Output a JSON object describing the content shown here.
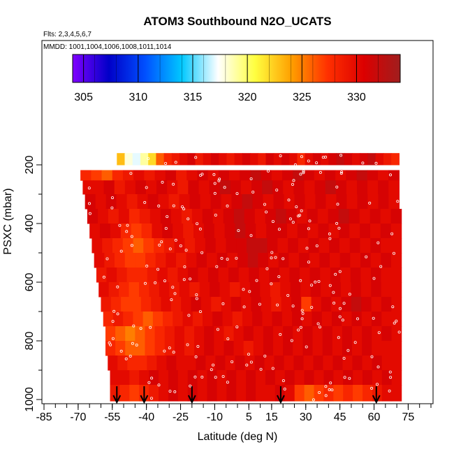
{
  "chart_data": {
    "type": "heatmap",
    "title": "ATOM3 Southbound N2O_UCATS",
    "flights_label": "Flts: 2,3,4,5,6,7",
    "dates_label": "MMDD: 1001,1004,1006,1008,1011,1014",
    "xlabel": "Latitude (deg N)",
    "ylabel": "PSXC (mbar)",
    "x_ticks": [
      "-85",
      "-70",
      "-55",
      "-40",
      "-25",
      "-10",
      "5",
      "15",
      "30",
      "45",
      "60",
      "75"
    ],
    "y_ticks": [
      "200",
      "400",
      "600",
      "800",
      "1000"
    ],
    "xlim": [
      -85,
      85
    ],
    "ylim": [
      1000,
      200
    ],
    "colorbar": {
      "range": [
        304,
        334
      ],
      "ticks": [
        "305",
        "310",
        "315",
        "320",
        "325",
        "330"
      ],
      "colors": [
        "#8000ff",
        "#0000c8",
        "#0050ff",
        "#00c8ff",
        "#ffffff",
        "#ffff40",
        "#ffa000",
        "#ff3000",
        "#dc0000",
        "#a01e1e"
      ]
    },
    "arrow_latitudes": [
      -53,
      -41,
      -20,
      19,
      61
    ],
    "layers": [
      {
        "p_top": 160,
        "p_bot": 200,
        "lat_min": -53,
        "lat_max": 71,
        "values": [
          323,
          318,
          317,
          319,
          322,
          326,
          328,
          329,
          330,
          331,
          329,
          330,
          331,
          330,
          329,
          330,
          331,
          330,
          329,
          331,
          330,
          331,
          330,
          328,
          330,
          331,
          330,
          331,
          332,
          331,
          330,
          331,
          332,
          330,
          329,
          328
        ]
      },
      {
        "p_top": 218,
        "p_bot": 253,
        "lat_min": -69,
        "lat_max": 71,
        "values": [
          328,
          327,
          326,
          328,
          329,
          330,
          329,
          330,
          331,
          329,
          330,
          331,
          330,
          331,
          330,
          331,
          332,
          331,
          330,
          331,
          332,
          331,
          330,
          331,
          330,
          331,
          332,
          331,
          330,
          331
        ]
      },
      {
        "p_top": 253,
        "p_bot": 300,
        "lat_min": -68,
        "lat_max": 71,
        "values": [
          330,
          330,
          331,
          329,
          330,
          331,
          330,
          331,
          330,
          329,
          331,
          330,
          331,
          332,
          331,
          330,
          331,
          332,
          331,
          330,
          331,
          330,
          331,
          332,
          331,
          330,
          331,
          330,
          331,
          330
        ]
      },
      {
        "p_top": 300,
        "p_bot": 350,
        "lat_min": -67,
        "lat_max": 71,
        "values": [
          331,
          330,
          331,
          330,
          329,
          330,
          331,
          330,
          329,
          330,
          331,
          330,
          331,
          330,
          331,
          332,
          331,
          330,
          331,
          330,
          331,
          330,
          331,
          330,
          331,
          330,
          331,
          330,
          331,
          330
        ]
      },
      {
        "p_top": 350,
        "p_bot": 400,
        "lat_min": -66,
        "lat_max": 72,
        "values": [
          331,
          330,
          329,
          330,
          328,
          329,
          330,
          331,
          330,
          329,
          330,
          331,
          330,
          331,
          332,
          331,
          330,
          331,
          332,
          331,
          330,
          331,
          330,
          331,
          332,
          331,
          330,
          331,
          330,
          331
        ]
      },
      {
        "p_top": 400,
        "p_bot": 450,
        "lat_min": -65,
        "lat_max": 72,
        "values": [
          330,
          331,
          330,
          328,
          327,
          328,
          330,
          331,
          330,
          329,
          330,
          331,
          330,
          331,
          332,
          331,
          330,
          331,
          331,
          330,
          331,
          330,
          331,
          330,
          331,
          330,
          331,
          330,
          331,
          330
        ]
      },
      {
        "p_top": 450,
        "p_bot": 500,
        "lat_min": -64,
        "lat_max": 72,
        "values": [
          330,
          329,
          328,
          327,
          326,
          327,
          328,
          329,
          330,
          329,
          330,
          331,
          330,
          331,
          331,
          332,
          332,
          331,
          330,
          331,
          330,
          331,
          330,
          331,
          330,
          331,
          330,
          331,
          330,
          330
        ]
      },
      {
        "p_top": 500,
        "p_bot": 550,
        "lat_min": -63,
        "lat_max": 72,
        "values": [
          330,
          329,
          328,
          327,
          327,
          328,
          329,
          330,
          329,
          330,
          331,
          330,
          331,
          330,
          331,
          332,
          331,
          330,
          331,
          330,
          331,
          330,
          331,
          330,
          331,
          330,
          331,
          330,
          331,
          330
        ]
      },
      {
        "p_top": 550,
        "p_bot": 600,
        "lat_min": -62,
        "lat_max": 72,
        "values": [
          329,
          330,
          329,
          328,
          328,
          329,
          330,
          329,
          330,
          331,
          330,
          331,
          330,
          331,
          330,
          331,
          330,
          331,
          330,
          331,
          330,
          331,
          330,
          331,
          330,
          331,
          330,
          331,
          330,
          330
        ]
      },
      {
        "p_top": 600,
        "p_bot": 650,
        "lat_min": -61,
        "lat_max": 72,
        "values": [
          330,
          329,
          328,
          327,
          328,
          329,
          330,
          329,
          330,
          329,
          330,
          331,
          330,
          329,
          330,
          331,
          330,
          329,
          330,
          331,
          330,
          331,
          330,
          331,
          330,
          331,
          330,
          331,
          330,
          330
        ]
      },
      {
        "p_top": 650,
        "p_bot": 700,
        "lat_min": -60,
        "lat_max": 72,
        "values": [
          329,
          328,
          327,
          327,
          328,
          329,
          330,
          329,
          330,
          331,
          330,
          329,
          330,
          331,
          330,
          331,
          330,
          329,
          330,
          331,
          327,
          330,
          331,
          330,
          331,
          332,
          331,
          330,
          331,
          330
        ]
      },
      {
        "p_top": 700,
        "p_bot": 750,
        "lat_min": -59,
        "lat_max": 72,
        "values": [
          328,
          329,
          328,
          327,
          326,
          327,
          328,
          329,
          330,
          329,
          330,
          331,
          330,
          329,
          330,
          331,
          330,
          331,
          330,
          331,
          330,
          331,
          330,
          331,
          330,
          331,
          330,
          331,
          330,
          330
        ]
      },
      {
        "p_top": 750,
        "p_bot": 800,
        "lat_min": -58,
        "lat_max": 72,
        "values": [
          327,
          326,
          325,
          326,
          327,
          328,
          329,
          330,
          329,
          330,
          331,
          330,
          329,
          330,
          331,
          330,
          331,
          330,
          331,
          330,
          331,
          330,
          331,
          330,
          331,
          330,
          331,
          330,
          331,
          330
        ]
      },
      {
        "p_top": 800,
        "p_bot": 850,
        "lat_min": -58,
        "lat_max": 72,
        "values": [
          328,
          327,
          326,
          326,
          327,
          328,
          329,
          330,
          329,
          330,
          331,
          330,
          331,
          330,
          329,
          330,
          331,
          330,
          331,
          330,
          331,
          330,
          331,
          330,
          331,
          330,
          331,
          330,
          330,
          330
        ]
      },
      {
        "p_top": 850,
        "p_bot": 900,
        "lat_min": -57,
        "lat_max": 72,
        "values": [
          330,
          329,
          328,
          328,
          329,
          330,
          331,
          330,
          330,
          331,
          330,
          331,
          330,
          331,
          330,
          331,
          330,
          331,
          330,
          331,
          330,
          331,
          330,
          331,
          330,
          331,
          330,
          331,
          330,
          330
        ]
      },
      {
        "p_top": 900,
        "p_bot": 950,
        "lat_min": -56,
        "lat_max": 72,
        "values": [
          330,
          330,
          329,
          330,
          331,
          330,
          331,
          330,
          331,
          330,
          331,
          330,
          331,
          330,
          331,
          330,
          331,
          330,
          331,
          330,
          331,
          330,
          331,
          330,
          331,
          330,
          331,
          330,
          331,
          330
        ]
      },
      {
        "p_top": 950,
        "p_bot": 1005,
        "lat_min": -56,
        "lat_max": 72,
        "values": [
          329,
          328,
          327,
          328,
          329,
          330,
          331,
          330,
          331,
          330,
          331,
          330,
          331,
          330,
          331,
          330,
          330,
          331,
          330,
          327,
          326,
          327,
          328,
          327,
          328,
          327,
          328,
          329,
          330,
          330
        ]
      }
    ]
  }
}
